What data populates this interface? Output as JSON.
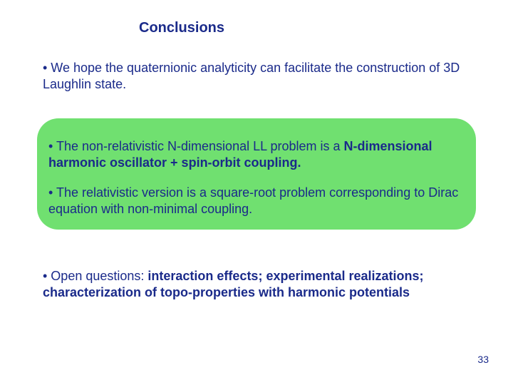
{
  "colors": {
    "text": "#1a2a8a",
    "highlight_bg": "#70e070",
    "page_bg": "#ffffff"
  },
  "typography": {
    "title_fontsize": 20,
    "body_fontsize": 18,
    "pagenum_fontsize": 14,
    "font_family": "Arial"
  },
  "title": "Conclusions",
  "bullets": {
    "b1": "• We hope the quaternionic analyticity can facilitate the construction of 3D Laughlin state.",
    "b2_pre": "• The non-relativistic N-dimensional LL problem is a  ",
    "b2_bold": "N-dimensional harmonic oscillator + spin-orbit coupling.",
    "b3": "• The relativistic version is a square-root problem corresponding to Dirac equation with non-minimal coupling.",
    "b4_pre": "• Open questions: ",
    "b4_bold": "interaction effects; experimental realizations; characterization of topo-properties with harmonic potentials"
  },
  "page_number": "33"
}
